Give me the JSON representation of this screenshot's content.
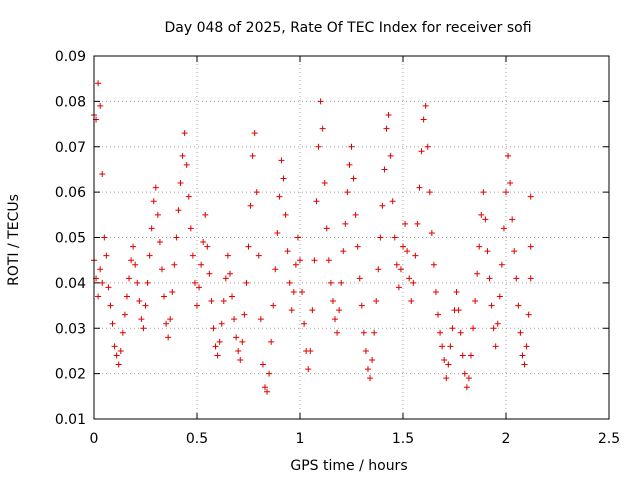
{
  "chart_data": {
    "type": "scatter",
    "title": "Day 048 of 2025, Rate Of TEC Index for receiver sofi",
    "xlabel": "GPS time / hours",
    "ylabel": "ROTI / TECUs",
    "xlim": [
      0,
      2.5
    ],
    "ylim": [
      0.01,
      0.09
    ],
    "x_ticks": [
      0,
      0.5,
      1,
      1.5,
      2,
      2.5
    ],
    "x_tick_labels": [
      "0",
      "0.5",
      "1",
      "1.5",
      "2",
      "2.5"
    ],
    "y_ticks": [
      0.01,
      0.02,
      0.03,
      0.04,
      0.05,
      0.06,
      0.07,
      0.08,
      0.09
    ],
    "y_tick_labels": [
      "0.01",
      "0.02",
      "0.03",
      "0.04",
      "0.05",
      "0.06",
      "0.07",
      "0.08",
      "0.09"
    ],
    "grid": true,
    "marker": "plus",
    "series": [
      {
        "name": "ROTI",
        "color": "#e00000",
        "points": [
          [
            0.0,
            0.077
          ],
          [
            0.01,
            0.076
          ],
          [
            0.02,
            0.084
          ],
          [
            0.03,
            0.079
          ],
          [
            0.04,
            0.064
          ],
          [
            0.0,
            0.045
          ],
          [
            0.01,
            0.041
          ],
          [
            0.02,
            0.037
          ],
          [
            0.03,
            0.043
          ],
          [
            0.04,
            0.04
          ],
          [
            0.05,
            0.05
          ],
          [
            0.06,
            0.046
          ],
          [
            0.07,
            0.039
          ],
          [
            0.08,
            0.035
          ],
          [
            0.09,
            0.031
          ],
          [
            0.1,
            0.026
          ],
          [
            0.11,
            0.024
          ],
          [
            0.12,
            0.022
          ],
          [
            0.13,
            0.025
          ],
          [
            0.14,
            0.029
          ],
          [
            0.15,
            0.033
          ],
          [
            0.16,
            0.037
          ],
          [
            0.17,
            0.041
          ],
          [
            0.18,
            0.045
          ],
          [
            0.19,
            0.048
          ],
          [
            0.2,
            0.044
          ],
          [
            0.21,
            0.04
          ],
          [
            0.22,
            0.036
          ],
          [
            0.23,
            0.032
          ],
          [
            0.24,
            0.03
          ],
          [
            0.25,
            0.035
          ],
          [
            0.26,
            0.04
          ],
          [
            0.27,
            0.046
          ],
          [
            0.28,
            0.052
          ],
          [
            0.29,
            0.058
          ],
          [
            0.3,
            0.061
          ],
          [
            0.31,
            0.055
          ],
          [
            0.32,
            0.049
          ],
          [
            0.33,
            0.043
          ],
          [
            0.34,
            0.037
          ],
          [
            0.35,
            0.031
          ],
          [
            0.36,
            0.028
          ],
          [
            0.37,
            0.032
          ],
          [
            0.38,
            0.038
          ],
          [
            0.39,
            0.044
          ],
          [
            0.4,
            0.05
          ],
          [
            0.41,
            0.056
          ],
          [
            0.42,
            0.062
          ],
          [
            0.43,
            0.068
          ],
          [
            0.44,
            0.073
          ],
          [
            0.45,
            0.066
          ],
          [
            0.46,
            0.059
          ],
          [
            0.47,
            0.052
          ],
          [
            0.48,
            0.046
          ],
          [
            0.49,
            0.04
          ],
          [
            0.5,
            0.035
          ],
          [
            0.51,
            0.039
          ],
          [
            0.52,
            0.044
          ],
          [
            0.53,
            0.049
          ],
          [
            0.54,
            0.055
          ],
          [
            0.55,
            0.048
          ],
          [
            0.56,
            0.042
          ],
          [
            0.57,
            0.036
          ],
          [
            0.58,
            0.03
          ],
          [
            0.59,
            0.026
          ],
          [
            0.6,
            0.024
          ],
          [
            0.61,
            0.027
          ],
          [
            0.62,
            0.031
          ],
          [
            0.63,
            0.036
          ],
          [
            0.64,
            0.041
          ],
          [
            0.65,
            0.046
          ],
          [
            0.66,
            0.042
          ],
          [
            0.67,
            0.037
          ],
          [
            0.68,
            0.032
          ],
          [
            0.69,
            0.028
          ],
          [
            0.7,
            0.025
          ],
          [
            0.71,
            0.023
          ],
          [
            0.72,
            0.027
          ],
          [
            0.73,
            0.033
          ],
          [
            0.74,
            0.04
          ],
          [
            0.75,
            0.048
          ],
          [
            0.76,
            0.057
          ],
          [
            0.77,
            0.068
          ],
          [
            0.78,
            0.073
          ],
          [
            0.79,
            0.06
          ],
          [
            0.8,
            0.046
          ],
          [
            0.81,
            0.032
          ],
          [
            0.82,
            0.022
          ],
          [
            0.83,
            0.017
          ],
          [
            0.84,
            0.016
          ],
          [
            0.85,
            0.02
          ],
          [
            0.86,
            0.027
          ],
          [
            0.87,
            0.035
          ],
          [
            0.88,
            0.043
          ],
          [
            0.89,
            0.051
          ],
          [
            0.9,
            0.059
          ],
          [
            0.91,
            0.067
          ],
          [
            0.92,
            0.063
          ],
          [
            0.93,
            0.055
          ],
          [
            0.94,
            0.047
          ],
          [
            0.95,
            0.04
          ],
          [
            0.96,
            0.034
          ],
          [
            0.97,
            0.038
          ],
          [
            0.98,
            0.044
          ],
          [
            0.99,
            0.05
          ],
          [
            1.0,
            0.045
          ],
          [
            1.01,
            0.038
          ],
          [
            1.02,
            0.031
          ],
          [
            1.03,
            0.025
          ],
          [
            1.04,
            0.021
          ],
          [
            1.05,
            0.025
          ],
          [
            1.06,
            0.034
          ],
          [
            1.07,
            0.045
          ],
          [
            1.08,
            0.058
          ],
          [
            1.09,
            0.07
          ],
          [
            1.1,
            0.08
          ],
          [
            1.11,
            0.074
          ],
          [
            1.12,
            0.062
          ],
          [
            1.13,
            0.052
          ],
          [
            1.14,
            0.045
          ],
          [
            1.15,
            0.04
          ],
          [
            1.16,
            0.036
          ],
          [
            1.17,
            0.032
          ],
          [
            1.18,
            0.029
          ],
          [
            1.19,
            0.034
          ],
          [
            1.2,
            0.04
          ],
          [
            1.21,
            0.047
          ],
          [
            1.22,
            0.053
          ],
          [
            1.23,
            0.06
          ],
          [
            1.24,
            0.066
          ],
          [
            1.25,
            0.07
          ],
          [
            1.26,
            0.063
          ],
          [
            1.27,
            0.055
          ],
          [
            1.28,
            0.048
          ],
          [
            1.29,
            0.041
          ],
          [
            1.3,
            0.035
          ],
          [
            1.31,
            0.029
          ],
          [
            1.32,
            0.025
          ],
          [
            1.33,
            0.021
          ],
          [
            1.34,
            0.019
          ],
          [
            1.35,
            0.023
          ],
          [
            1.36,
            0.029
          ],
          [
            1.37,
            0.036
          ],
          [
            1.38,
            0.043
          ],
          [
            1.39,
            0.05
          ],
          [
            1.4,
            0.057
          ],
          [
            1.41,
            0.065
          ],
          [
            1.42,
            0.074
          ],
          [
            1.43,
            0.077
          ],
          [
            1.44,
            0.068
          ],
          [
            1.45,
            0.058
          ],
          [
            1.46,
            0.05
          ],
          [
            1.47,
            0.044
          ],
          [
            1.48,
            0.039
          ],
          [
            1.49,
            0.043
          ],
          [
            1.5,
            0.048
          ],
          [
            1.51,
            0.053
          ],
          [
            1.52,
            0.047
          ],
          [
            1.53,
            0.041
          ],
          [
            1.54,
            0.036
          ],
          [
            1.55,
            0.04
          ],
          [
            1.56,
            0.046
          ],
          [
            1.57,
            0.053
          ],
          [
            1.58,
            0.061
          ],
          [
            1.59,
            0.069
          ],
          [
            1.6,
            0.076
          ],
          [
            1.61,
            0.079
          ],
          [
            1.62,
            0.07
          ],
          [
            1.63,
            0.06
          ],
          [
            1.64,
            0.051
          ],
          [
            1.65,
            0.044
          ],
          [
            1.66,
            0.038
          ],
          [
            1.67,
            0.033
          ],
          [
            1.68,
            0.029
          ],
          [
            1.69,
            0.026
          ],
          [
            1.7,
            0.023
          ],
          [
            1.71,
            0.019
          ],
          [
            1.72,
            0.022
          ],
          [
            1.73,
            0.026
          ],
          [
            1.74,
            0.03
          ],
          [
            1.75,
            0.034
          ],
          [
            1.76,
            0.038
          ],
          [
            1.77,
            0.034
          ],
          [
            1.78,
            0.029
          ],
          [
            1.79,
            0.024
          ],
          [
            1.8,
            0.02
          ],
          [
            1.81,
            0.017
          ],
          [
            1.82,
            0.019
          ],
          [
            1.83,
            0.024
          ],
          [
            1.84,
            0.03
          ],
          [
            1.85,
            0.036
          ],
          [
            1.86,
            0.042
          ],
          [
            1.87,
            0.048
          ],
          [
            1.88,
            0.055
          ],
          [
            1.89,
            0.06
          ],
          [
            1.9,
            0.054
          ],
          [
            1.91,
            0.047
          ],
          [
            1.92,
            0.041
          ],
          [
            1.93,
            0.035
          ],
          [
            1.94,
            0.03
          ],
          [
            1.95,
            0.026
          ],
          [
            1.96,
            0.031
          ],
          [
            1.97,
            0.037
          ],
          [
            1.98,
            0.044
          ],
          [
            1.99,
            0.052
          ],
          [
            2.0,
            0.06
          ],
          [
            2.01,
            0.068
          ],
          [
            2.02,
            0.062
          ],
          [
            2.03,
            0.054
          ],
          [
            2.04,
            0.047
          ],
          [
            2.05,
            0.041
          ],
          [
            2.06,
            0.035
          ],
          [
            2.07,
            0.029
          ],
          [
            2.08,
            0.024
          ],
          [
            2.09,
            0.022
          ],
          [
            2.1,
            0.026
          ],
          [
            2.11,
            0.033
          ],
          [
            2.12,
            0.041
          ],
          [
            2.12,
            0.048
          ],
          [
            2.12,
            0.059
          ]
        ]
      }
    ]
  }
}
